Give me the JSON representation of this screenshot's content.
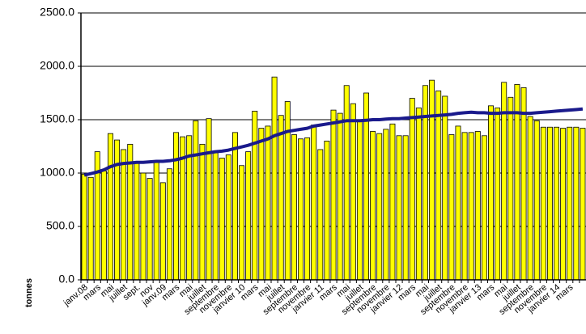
{
  "chart_data": {
    "type": "bar_line",
    "y_label": "tonnes",
    "categories": [
      "janv.08",
      null,
      "mars",
      null,
      "mai",
      null,
      "juillet",
      null,
      "sept.",
      null,
      "nov",
      null,
      "janv.09",
      null,
      "mars",
      null,
      "mai",
      null,
      "juillet",
      null,
      "septembre",
      null,
      "novembre",
      null,
      "janvier 10",
      null,
      "mars",
      null,
      "mai",
      null,
      "juillet",
      null,
      "septembre",
      null,
      "novembre",
      null,
      "janvier 11",
      null,
      "mars",
      null,
      "mai",
      null,
      "juillet",
      null,
      "septembre",
      null,
      "novembre",
      null,
      "janvier 12",
      null,
      "mars",
      null,
      "mai",
      null,
      "juillet",
      null,
      "septembre",
      null,
      "novembre",
      null,
      "janvier 13",
      null,
      "mars",
      null,
      "mai",
      null,
      "juillet",
      null,
      "septembre",
      null,
      "novembre",
      null,
      "janvier 14",
      null,
      "mars",
      null,
      null
    ],
    "series": [
      {
        "kind": "bar",
        "color": "#ffff00",
        "values": [
          990,
          960,
          1200,
          1020,
          1370,
          1310,
          1220,
          1270,
          1100,
          1000,
          950,
          1100,
          910,
          1040,
          1380,
          1340,
          1350,
          1490,
          1270,
          1510,
          1190,
          1140,
          1170,
          1380,
          1070,
          1200,
          1580,
          1420,
          1440,
          1900,
          1540,
          1670,
          1360,
          1320,
          1330,
          1450,
          1220,
          1300,
          1590,
          1560,
          1820,
          1650,
          1480,
          1750,
          1390,
          1370,
          1410,
          1460,
          1350,
          1350,
          1700,
          1610,
          1820,
          1870,
          1770,
          1720,
          1360,
          1440,
          1380,
          1380,
          1390,
          1350,
          1630,
          1610,
          1850,
          1710,
          1830,
          1800,
          1530,
          1490,
          1430,
          1430,
          1430,
          1420,
          1430,
          1430,
          1420
        ]
      },
      {
        "kind": "line",
        "color": "#1a1a8c",
        "values": [
          980,
          995,
          1010,
          1030,
          1060,
          1080,
          1090,
          1095,
          1100,
          1100,
          1105,
          1110,
          1110,
          1115,
          1125,
          1140,
          1160,
          1170,
          1180,
          1190,
          1200,
          1205,
          1215,
          1230,
          1245,
          1260,
          1280,
          1300,
          1320,
          1350,
          1370,
          1390,
          1400,
          1410,
          1420,
          1440,
          1450,
          1460,
          1470,
          1480,
          1490,
          1490,
          1490,
          1495,
          1500,
          1500,
          1505,
          1510,
          1510,
          1515,
          1520,
          1525,
          1530,
          1535,
          1540,
          1545,
          1550,
          1560,
          1565,
          1570,
          1565,
          1565,
          1560,
          1560,
          1565,
          1565,
          1565,
          1560,
          1560,
          1565,
          1570,
          1575,
          1580,
          1585,
          1590,
          1595,
          1600
        ]
      }
    ],
    "ylim": [
      0,
      2500
    ],
    "yticks": [
      {
        "value": 0,
        "label": "0.0"
      },
      {
        "value": 500,
        "label": "500.0"
      },
      {
        "value": 1000,
        "label": "1000.0"
      },
      {
        "value": 1500,
        "label": "1500.0"
      },
      {
        "value": 2000,
        "label": "2000.0"
      },
      {
        "value": 2500,
        "label": "2500.0"
      }
    ],
    "grid": true
  }
}
